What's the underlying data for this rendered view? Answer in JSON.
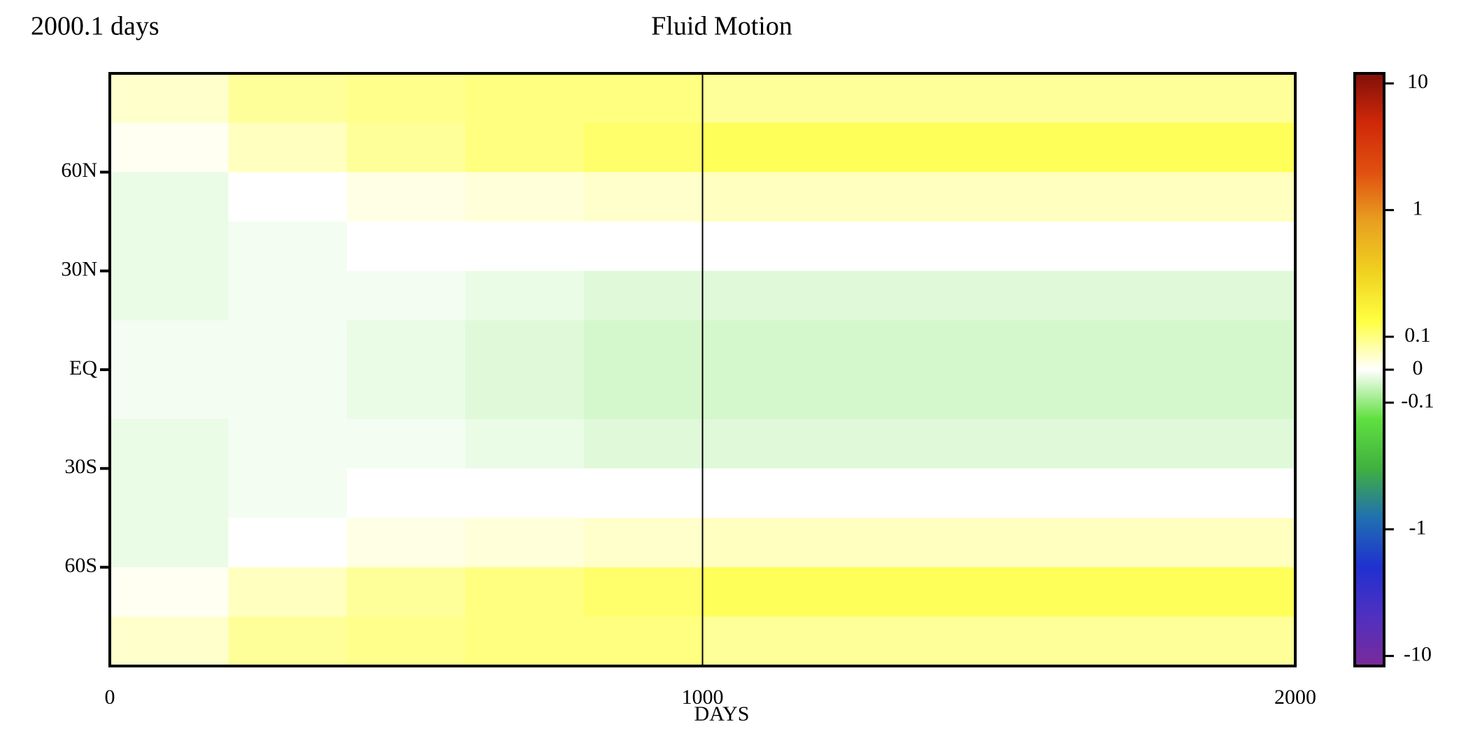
{
  "chart_data": {
    "type": "heatmap",
    "title": "Fluid Motion",
    "subtitle": "2000.1 days",
    "x_label": "DAYS",
    "xlim": [
      0,
      2000
    ],
    "xticks": [
      0,
      1000,
      2000
    ],
    "ylim": [
      -90,
      90
    ],
    "yticks": [
      {
        "value": 60,
        "label": "60N"
      },
      {
        "value": 30,
        "label": "30N"
      },
      {
        "value": 0,
        "label": "EQ"
      },
      {
        "value": -30,
        "label": "30S"
      },
      {
        "value": -60,
        "label": "60S"
      }
    ],
    "xbins": [
      0,
      200,
      400,
      600,
      800,
      1000,
      1200,
      1400,
      1600,
      1800,
      2000
    ],
    "ybins": [
      90,
      75,
      60,
      45,
      30,
      15,
      0,
      -15,
      -30,
      -45,
      -60,
      -75,
      -90
    ],
    "values": [
      [
        0.04,
        0.08,
        0.09,
        0.1,
        0.1,
        0.08,
        0.08,
        0.08,
        0.08,
        0.08
      ],
      [
        0.01,
        0.05,
        0.08,
        0.1,
        0.11,
        0.12,
        0.12,
        0.12,
        0.12,
        0.12
      ],
      [
        -0.02,
        0.0,
        0.02,
        0.03,
        0.04,
        0.05,
        0.05,
        0.05,
        0.05,
        0.05
      ],
      [
        -0.02,
        -0.01,
        0.0,
        0.0,
        0.0,
        0.0,
        0.0,
        0.0,
        0.0,
        0.0
      ],
      [
        -0.02,
        -0.01,
        -0.01,
        -0.02,
        -0.03,
        -0.03,
        -0.03,
        -0.03,
        -0.03,
        -0.03
      ],
      [
        -0.01,
        -0.01,
        -0.02,
        -0.03,
        -0.04,
        -0.04,
        -0.04,
        -0.04,
        -0.04,
        -0.04
      ],
      [
        -0.01,
        -0.01,
        -0.02,
        -0.03,
        -0.04,
        -0.04,
        -0.04,
        -0.04,
        -0.04,
        -0.04
      ],
      [
        -0.02,
        -0.01,
        -0.01,
        -0.02,
        -0.03,
        -0.03,
        -0.03,
        -0.03,
        -0.03,
        -0.03
      ],
      [
        -0.02,
        -0.01,
        0.0,
        0.0,
        0.0,
        0.0,
        0.0,
        0.0,
        0.0,
        0.0
      ],
      [
        -0.02,
        0.0,
        0.02,
        0.03,
        0.04,
        0.05,
        0.05,
        0.05,
        0.05,
        0.05
      ],
      [
        0.01,
        0.05,
        0.08,
        0.1,
        0.11,
        0.12,
        0.12,
        0.12,
        0.12,
        0.12
      ],
      [
        0.04,
        0.08,
        0.09,
        0.1,
        0.1,
        0.08,
        0.08,
        0.08,
        0.08,
        0.08
      ]
    ],
    "colorbar": {
      "clim": [
        -12,
        12
      ],
      "linthresh": 0.1,
      "ticks": [
        10,
        1,
        0.1,
        0,
        -0.1,
        -1,
        -10
      ],
      "colors": [
        "#7a2a9a",
        "#5030c0",
        "#2030d0",
        "#2070b0",
        "#40b040",
        "#60e040",
        "#ffffff",
        "#ffff40",
        "#f0d020",
        "#e8a020",
        "#e05010",
        "#d02808",
        "#801008"
      ]
    }
  }
}
